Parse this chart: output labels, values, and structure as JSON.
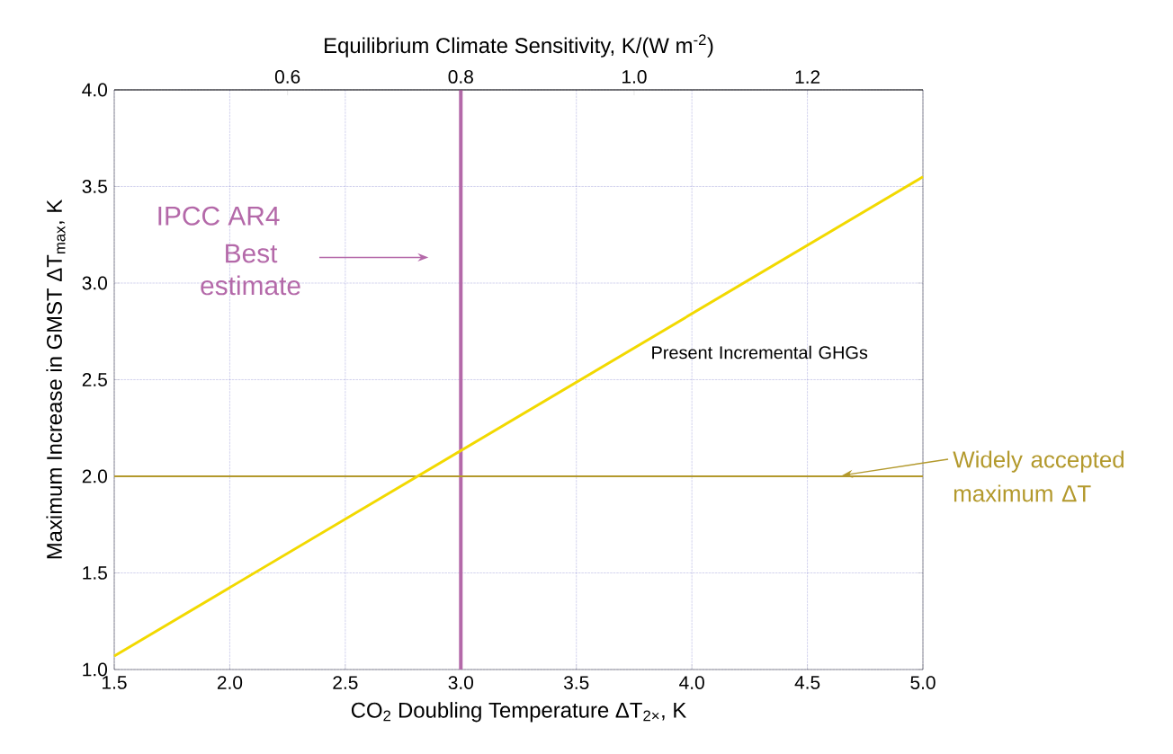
{
  "chart_data": {
    "type": "line",
    "x2label": "Equilibrium Climate Sensitivity, K/(W m$^{-2}$)",
    "xlabel": "CO$_{2}$ Doubling Temperature ΔT$_{2×}$, K",
    "ylabel": "Maximum Increase in GMST ΔT$_{max}$, K",
    "series": [
      {
        "name": "Present Incremental GHGs",
        "color": "#f2d900",
        "x": [
          1.5,
          5.0
        ],
        "values": [
          1.07,
          3.55
        ]
      }
    ],
    "xlim": [
      1.5,
      5.0
    ],
    "xticks": [
      {
        "value": 1.5,
        "label": "1.5"
      },
      {
        "value": 2.0,
        "label": "2.0"
      },
      {
        "value": 2.5,
        "label": "2.5"
      },
      {
        "value": 3.0,
        "label": "3.0"
      },
      {
        "value": 3.5,
        "label": "3.5"
      },
      {
        "value": 4.0,
        "label": "4.0"
      },
      {
        "value": 4.5,
        "label": "4.5"
      },
      {
        "value": 5.0,
        "label": "5.0"
      }
    ],
    "x2lim": [
      0.4,
      1.3333
    ],
    "x2ticks": [
      {
        "value": 0.6,
        "label": "0.6"
      },
      {
        "value": 0.8,
        "label": "0.8"
      },
      {
        "value": 1.0,
        "label": "1.0"
      },
      {
        "value": 1.2,
        "label": "1.2"
      }
    ],
    "ylim": [
      1.0,
      4.0
    ],
    "yticks": [
      {
        "value": 1.0,
        "label": "1.0"
      },
      {
        "value": 1.5,
        "label": "1.5"
      },
      {
        "value": 2.0,
        "label": "2.0"
      },
      {
        "value": 2.5,
        "label": "2.5"
      },
      {
        "value": 3.0,
        "label": "3.0"
      },
      {
        "value": 3.5,
        "label": "3.5"
      },
      {
        "value": 4.0,
        "label": "4.0"
      }
    ],
    "grid": true,
    "ref_lines": [
      {
        "axis": "x",
        "value": 3.0,
        "label": "Best estimate",
        "color": "#b469a9"
      },
      {
        "axis": "y",
        "value": 2.0,
        "label": "Widely accepted maximum  ΔT",
        "color": "#b3992c"
      }
    ],
    "annotations": [
      "IPCC AR4"
    ]
  }
}
